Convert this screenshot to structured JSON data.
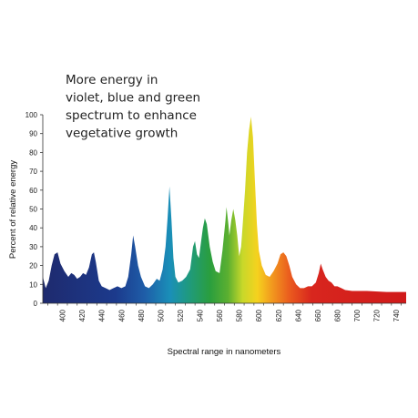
{
  "chart_data": {
    "type": "area",
    "xlabel": "Spectral range in nanometers",
    "ylabel": "Percent of relative energy",
    "xlim": [
      380,
      750
    ],
    "ylim": [
      0,
      100
    ],
    "x_ticks": [
      400,
      420,
      440,
      460,
      480,
      500,
      520,
      540,
      560,
      580,
      600,
      620,
      640,
      660,
      680,
      700,
      720,
      740
    ],
    "y_ticks": [
      0,
      10,
      20,
      30,
      40,
      50,
      60,
      70,
      80,
      90,
      100
    ],
    "annotation": [
      "More energy in",
      "violet, blue and green",
      "spectrum to enhance",
      "vegetative growth"
    ],
    "grid": false,
    "fill": "spectral gradient (violet to red)",
    "points": [
      [
        380,
        14
      ],
      [
        383,
        8
      ],
      [
        386,
        12
      ],
      [
        389,
        20
      ],
      [
        392,
        26
      ],
      [
        395,
        27
      ],
      [
        398,
        21
      ],
      [
        402,
        17
      ],
      [
        406,
        14
      ],
      [
        409,
        16
      ],
      [
        412,
        15
      ],
      [
        415,
        13
      ],
      [
        418,
        14
      ],
      [
        421,
        16
      ],
      [
        424,
        15
      ],
      [
        427,
        19
      ],
      [
        430,
        26
      ],
      [
        432,
        27
      ],
      [
        434,
        22
      ],
      [
        437,
        12
      ],
      [
        440,
        9
      ],
      [
        444,
        8
      ],
      [
        448,
        7
      ],
      [
        452,
        8
      ],
      [
        456,
        9
      ],
      [
        460,
        8
      ],
      [
        464,
        9
      ],
      [
        467,
        14
      ],
      [
        470,
        26
      ],
      [
        472,
        36
      ],
      [
        474,
        30
      ],
      [
        477,
        20
      ],
      [
        480,
        14
      ],
      [
        484,
        9
      ],
      [
        488,
        8
      ],
      [
        492,
        10
      ],
      [
        496,
        13
      ],
      [
        499,
        12
      ],
      [
        502,
        18
      ],
      [
        505,
        30
      ],
      [
        507,
        45
      ],
      [
        509,
        62
      ],
      [
        511,
        44
      ],
      [
        513,
        24
      ],
      [
        515,
        14
      ],
      [
        518,
        11
      ],
      [
        522,
        12
      ],
      [
        526,
        14
      ],
      [
        530,
        18
      ],
      [
        533,
        30
      ],
      [
        535,
        33
      ],
      [
        537,
        26
      ],
      [
        539,
        24
      ],
      [
        541,
        32
      ],
      [
        543,
        40
      ],
      [
        545,
        45
      ],
      [
        547,
        42
      ],
      [
        550,
        30
      ],
      [
        553,
        22
      ],
      [
        556,
        17
      ],
      [
        560,
        16
      ],
      [
        563,
        28
      ],
      [
        566,
        44
      ],
      [
        567,
        51
      ],
      [
        569,
        42
      ],
      [
        570,
        36
      ],
      [
        572,
        44
      ],
      [
        574,
        50
      ],
      [
        576,
        44
      ],
      [
        578,
        36
      ],
      [
        580,
        25
      ],
      [
        582,
        30
      ],
      [
        584,
        45
      ],
      [
        586,
        60
      ],
      [
        588,
        80
      ],
      [
        590,
        92
      ],
      [
        592,
        99
      ],
      [
        594,
        88
      ],
      [
        596,
        65
      ],
      [
        598,
        42
      ],
      [
        600,
        28
      ],
      [
        603,
        20
      ],
      [
        607,
        15
      ],
      [
        611,
        14
      ],
      [
        615,
        17
      ],
      [
        619,
        21
      ],
      [
        622,
        26
      ],
      [
        625,
        27
      ],
      [
        628,
        25
      ],
      [
        631,
        20
      ],
      [
        634,
        14
      ],
      [
        638,
        10
      ],
      [
        642,
        8
      ],
      [
        646,
        8
      ],
      [
        650,
        9
      ],
      [
        654,
        9
      ],
      [
        658,
        11
      ],
      [
        661,
        16
      ],
      [
        663,
        21
      ],
      [
        665,
        18
      ],
      [
        668,
        14
      ],
      [
        671,
        12
      ],
      [
        674,
        11
      ],
      [
        677,
        9
      ],
      [
        680,
        9
      ],
      [
        684,
        8
      ],
      [
        688,
        7
      ],
      [
        695,
        6.5
      ],
      [
        710,
        6.5
      ],
      [
        730,
        6
      ],
      [
        750,
        6
      ]
    ]
  }
}
